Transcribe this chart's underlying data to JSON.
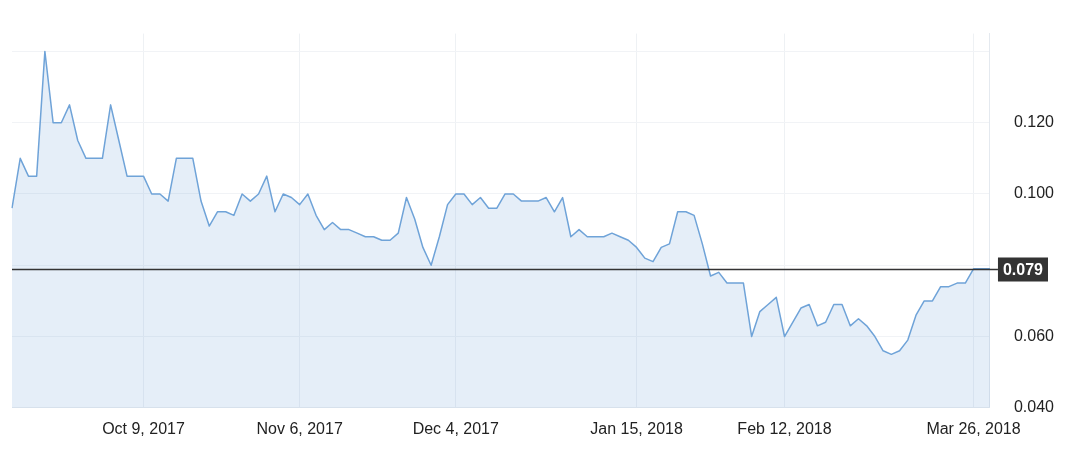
{
  "chart_data": {
    "type": "area",
    "categories": [
      null,
      null,
      null,
      null,
      null,
      null,
      null,
      null,
      null,
      null,
      null,
      null,
      null,
      null,
      null,
      null,
      "Oct 9, 2017",
      null,
      null,
      null,
      null,
      null,
      null,
      null,
      null,
      null,
      null,
      null,
      null,
      null,
      null,
      null,
      null,
      null,
      null,
      "Nov 6, 2017",
      null,
      null,
      null,
      null,
      null,
      null,
      null,
      null,
      null,
      null,
      null,
      null,
      null,
      null,
      null,
      null,
      null,
      null,
      "Dec 4, 2017",
      null,
      null,
      null,
      null,
      null,
      null,
      null,
      null,
      null,
      null,
      null,
      null,
      null,
      null,
      null,
      null,
      null,
      null,
      null,
      null,
      null,
      "Jan 15, 2018",
      null,
      null,
      null,
      null,
      null,
      null,
      null,
      null,
      null,
      null,
      null,
      null,
      null,
      null,
      null,
      null,
      null,
      "Feb 12, 2018",
      null,
      null,
      null,
      null,
      null,
      null,
      null,
      null,
      null,
      null,
      null,
      null,
      null,
      null,
      null,
      null,
      null,
      null,
      null,
      null,
      null,
      null,
      "Mar 26, 2018",
      null,
      null
    ],
    "series": [
      {
        "color": "#6fa3d8",
        "values": [
          0.096,
          0.11,
          0.105,
          0.105,
          0.14,
          0.12,
          0.12,
          0.125,
          0.115,
          0.11,
          0.11,
          0.11,
          0.125,
          0.115,
          0.105,
          0.105,
          0.105,
          0.1,
          0.1,
          0.098,
          0.11,
          0.11,
          0.11,
          0.098,
          0.091,
          0.095,
          0.095,
          0.094,
          0.1,
          0.098,
          0.1,
          0.105,
          0.095,
          0.1,
          0.099,
          0.097,
          0.1,
          0.094,
          0.09,
          0.092,
          0.09,
          0.09,
          0.089,
          0.088,
          0.088,
          0.087,
          0.087,
          0.089,
          0.099,
          0.093,
          0.085,
          0.08,
          0.088,
          0.097,
          0.1,
          0.1,
          0.097,
          0.099,
          0.096,
          0.096,
          0.1,
          0.1,
          0.098,
          0.098,
          0.098,
          0.099,
          0.095,
          0.099,
          0.088,
          0.09,
          0.088,
          0.088,
          0.088,
          0.089,
          0.088,
          0.087,
          0.085,
          0.082,
          0.081,
          0.085,
          0.086,
          0.095,
          0.095,
          0.094,
          0.086,
          0.077,
          0.078,
          0.075,
          0.075,
          0.075,
          0.06,
          0.067,
          0.069,
          0.071,
          0.06,
          0.064,
          0.068,
          0.069,
          0.063,
          0.064,
          0.069,
          0.069,
          0.063,
          0.065,
          0.063,
          0.06,
          0.056,
          0.055,
          0.056,
          0.059,
          0.066,
          0.07,
          0.07,
          0.074,
          0.074,
          0.075,
          0.075,
          0.079,
          0.079,
          0.079
        ]
      }
    ],
    "ylim": [
      0.04,
      0.145
    ],
    "yticks": [
      {
        "value": 0.04,
        "label": "0.040"
      },
      {
        "value": 0.06,
        "label": "0.060"
      },
      {
        "value": 0.08,
        "label": null
      },
      {
        "value": 0.1,
        "label": "0.100"
      },
      {
        "value": 0.12,
        "label": "0.120"
      },
      {
        "value": 0.14,
        "label": null
      }
    ],
    "ref_lines": [
      {
        "axis": "y",
        "value": 0.079,
        "label": "0.079",
        "color": "#333333"
      }
    ],
    "grid": true,
    "legend": false,
    "marker": "none",
    "line_style": "solid"
  }
}
